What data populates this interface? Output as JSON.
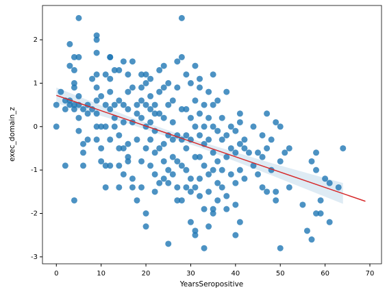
{
  "chart_data": {
    "type": "scatter",
    "x_label": "YearsSeropositive",
    "y_label": "exec_domain_z",
    "color": "#1f77b4",
    "xlim": [
      -3.1,
      72.6
    ],
    "ylim": [
      -3.16,
      2.79
    ],
    "xticks": [
      0,
      10,
      20,
      30,
      40,
      50,
      60,
      70
    ],
    "yticks": [
      -3,
      -2,
      -1,
      0,
      1,
      2
    ],
    "x": [
      0,
      0,
      1,
      2,
      2,
      2,
      3,
      3,
      3,
      3,
      4,
      4,
      4,
      4,
      4,
      4,
      4,
      5,
      5,
      5,
      5,
      5,
      5,
      6,
      6,
      6,
      6,
      7,
      7,
      7,
      8,
      8,
      9,
      9,
      9,
      9,
      9,
      9,
      9,
      9,
      9,
      10,
      10,
      10,
      10,
      11,
      11,
      11,
      11,
      11,
      12,
      12,
      12,
      12,
      12,
      12,
      12,
      13,
      13,
      13,
      13,
      14,
      14,
      14,
      14,
      14,
      14,
      15,
      15,
      15,
      15,
      15,
      16,
      16,
      16,
      16,
      16,
      16,
      17,
      17,
      17,
      17,
      17,
      18,
      18,
      18,
      18,
      19,
      19,
      19,
      19,
      19,
      19,
      20,
      20,
      20,
      20,
      20,
      20,
      20,
      21,
      21,
      21,
      21,
      21,
      21,
      22,
      22,
      22,
      22,
      22,
      22,
      23,
      23,
      23,
      23,
      23,
      24,
      24,
      24,
      24,
      24,
      24,
      25,
      25,
      25,
      25,
      25,
      25,
      26,
      26,
      26,
      26,
      26,
      27,
      27,
      27,
      27,
      27,
      27,
      28,
      28,
      28,
      28,
      28,
      28,
      29,
      29,
      29,
      29,
      29,
      29,
      30,
      30,
      30,
      30,
      30,
      30,
      31,
      31,
      31,
      31,
      31,
      31,
      31,
      32,
      32,
      32,
      32,
      32,
      32,
      32,
      33,
      33,
      33,
      33,
      33,
      33,
      34,
      34,
      34,
      34,
      34,
      34,
      35,
      35,
      35,
      35,
      35,
      35,
      35,
      36,
      36,
      36,
      36,
      36,
      37,
      37,
      37,
      37,
      38,
      38,
      38,
      38,
      38,
      39,
      39,
      39,
      40,
      40,
      40,
      40,
      40,
      41,
      41,
      41,
      41,
      41,
      42,
      42,
      42,
      43,
      44,
      44,
      45,
      45,
      46,
      46,
      46,
      47,
      47,
      47,
      48,
      48,
      49,
      49,
      49,
      50,
      50,
      50,
      51,
      52,
      52,
      55,
      56,
      57,
      57,
      58,
      58,
      58,
      59,
      59,
      60,
      61,
      61,
      63,
      64
    ],
    "y": [
      0.5,
      0,
      0.8,
      0.4,
      0.6,
      -0.9,
      1.9,
      1.4,
      0.6,
      0.5,
      1.6,
      1.3,
      1.0,
      0.9,
      0.5,
      0.4,
      -1.7,
      2.5,
      1.6,
      0.7,
      0.5,
      0.2,
      -0.1,
      0.4,
      -0.4,
      -0.6,
      -0.9,
      0.5,
      0.3,
      -0.3,
      1.1,
      0.4,
      2.1,
      2.0,
      1.7,
      1.2,
      0.9,
      0.6,
      0.3,
      0,
      -0.3,
      0.7,
      0,
      -0.8,
      -0.5,
      1.2,
      0.5,
      0,
      -0.9,
      -1.4,
      1.6,
      1.6,
      1.1,
      0.8,
      0.4,
      -0.3,
      -0.9,
      1.3,
      0.5,
      0.2,
      0,
      1.3,
      0.6,
      -0.5,
      -0.9,
      -1.4,
      -0.2,
      1.5,
      0.5,
      0.1,
      -0.5,
      -1.1,
      1.2,
      0.8,
      0.4,
      -0.4,
      -0.7,
      -0.8,
      1.5,
      0.9,
      0.1,
      -1.2,
      -1.4,
      0.5,
      0.3,
      -0.3,
      -1.7,
      1.2,
      0.9,
      0.6,
      0.2,
      -0.8,
      -1.4,
      1.2,
      1.0,
      0.5,
      0,
      -0.5,
      -2.0,
      -2.3,
      1.1,
      0.7,
      0.4,
      -0.3,
      -0.9,
      0.1,
      0.5,
      0.3,
      -0.1,
      -0.6,
      -1.1,
      -1.5,
      1.3,
      0.8,
      0.3,
      -0.5,
      -1.3,
      1.4,
      0.9,
      0.2,
      -0.4,
      -0.8,
      -1.2,
      1.0,
      0.5,
      -0.2,
      -1.0,
      -1.3,
      -2.7,
      0.6,
      0.1,
      -0.3,
      -0.7,
      -1.1,
      1.5,
      0.9,
      -0.2,
      -0.8,
      -1.4,
      -1.7,
      2.5,
      1.6,
      0.4,
      -0.3,
      -0.9,
      -1.7,
      1.2,
      0.4,
      -0.2,
      -0.5,
      -1.4,
      -1.0,
      1.0,
      0.2,
      -0.3,
      -1.2,
      -1.5,
      -2.2,
      1.4,
      0.6,
      0,
      -0.7,
      -2.4,
      -2.5,
      -1.4,
      1.1,
      0.3,
      -0.2,
      -0.7,
      -1.2,
      -1.6,
      0.9,
      0.5,
      0,
      -0.4,
      -0.9,
      -1.9,
      -2.8,
      0.8,
      0.2,
      -0.3,
      -1.1,
      -1.5,
      -2.3,
      1.2,
      0.5,
      0,
      -0.6,
      -1.0,
      -1.9,
      -2.0,
      0.6,
      -0.1,
      -0.8,
      -1.3,
      -1.7,
      0.2,
      -0.3,
      -1.0,
      -1.4,
      0.8,
      -0.2,
      -0.7,
      -1.6,
      -1.9,
      0,
      -0.5,
      -1.1,
      -0.1,
      -0.6,
      -1.3,
      -1.8,
      -2.5,
      0.3,
      0.1,
      -0.4,
      -1.0,
      -2.2,
      -0.5,
      -1.2,
      -0.3,
      -0.6,
      0,
      -0.9,
      -0.6,
      -1.1,
      -0.2,
      -1.4,
      -0.7,
      0.3,
      -0.5,
      -1.5,
      -1.0,
      -0.3,
      0.1,
      -1.5,
      -1.7,
      0,
      -0.8,
      -2.8,
      -0.6,
      -0.5,
      -1.4,
      -1.8,
      -2.4,
      -0.8,
      -2.6,
      -0.6,
      -1.0,
      -2.0,
      -1.7,
      -2.0,
      -1.2,
      -1.3,
      -2.2,
      -1.4,
      -0.5
    ],
    "regression": {
      "color": "#d62728",
      "x": [
        0,
        69
      ],
      "y": [
        0.72,
        -1.72
      ]
    },
    "band": {
      "color": "#1f77b4",
      "x": [
        0,
        16,
        32,
        48,
        64
      ],
      "upper": [
        0.9,
        0.24,
        -0.34,
        -0.84,
        -1.3
      ],
      "lower": [
        0.54,
        0.07,
        -0.48,
        -1.12,
        -1.78
      ]
    }
  }
}
